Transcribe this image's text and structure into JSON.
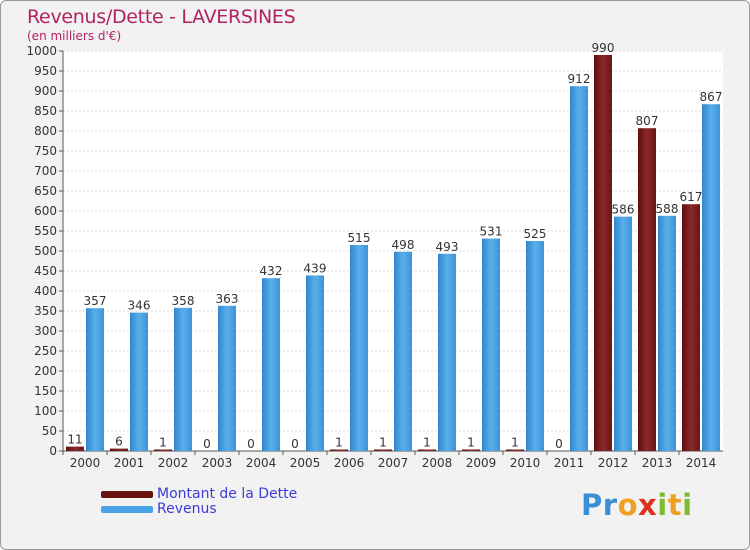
{
  "title": "Revenus/Dette - LAVERSINES",
  "subtitle": "(en milliers d'€)",
  "logo": {
    "letters": [
      "P",
      "r",
      "o",
      "x",
      "i",
      "t",
      "i"
    ],
    "colors": [
      "#3a8fd6",
      "#3a8fd6",
      "#f0a020",
      "#e0301e",
      "#7dbb2f",
      "#f0a020",
      "#7dbb2f"
    ]
  },
  "legend": [
    {
      "label": "Montant de la Dette",
      "color": "#6b1010"
    },
    {
      "label": "Revenus",
      "color": "#4aa3e6"
    }
  ],
  "chart_data": {
    "type": "bar",
    "categories": [
      "2000",
      "2001",
      "2002",
      "2003",
      "2004",
      "2005",
      "2006",
      "2007",
      "2008",
      "2009",
      "2010",
      "2011",
      "2012",
      "2013",
      "2014"
    ],
    "series": [
      {
        "name": "Montant de la Dette",
        "color": "#7a1a1a",
        "values": [
          11,
          6,
          1,
          0,
          0,
          0,
          1,
          1,
          1,
          1,
          1,
          0,
          990,
          807,
          617
        ]
      },
      {
        "name": "Revenus",
        "color": "#4aa3e6",
        "values": [
          357,
          346,
          358,
          363,
          432,
          439,
          515,
          498,
          493,
          531,
          525,
          912,
          586,
          588,
          867
        ]
      }
    ],
    "ylim": [
      0,
      1000
    ],
    "yticks": [
      0,
      50,
      100,
      150,
      200,
      250,
      300,
      350,
      400,
      450,
      500,
      550,
      600,
      650,
      700,
      750,
      800,
      850,
      900,
      950,
      1000
    ],
    "grid": true
  }
}
